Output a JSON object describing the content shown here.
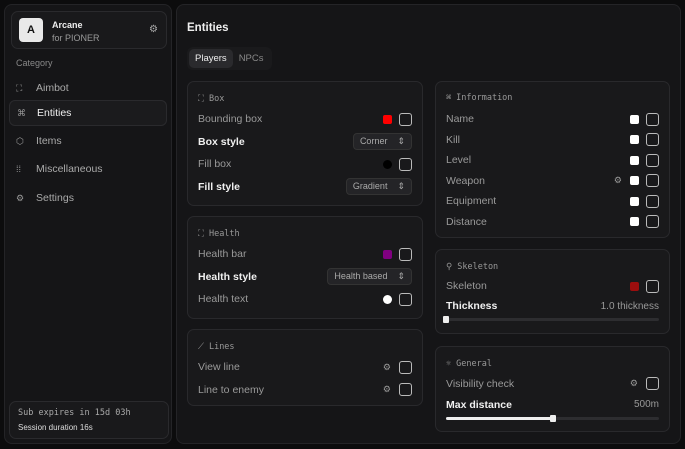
{
  "brand": {
    "logo": "A",
    "name": "Arcane",
    "subtitle": "for PIONER",
    "icon": "gear-icon"
  },
  "sidebar": {
    "category": "Category",
    "items": [
      {
        "label": "Aimbot",
        "icon": "crosshair-icon"
      },
      {
        "label": "Entities",
        "icon": "entities-icon",
        "active": true
      },
      {
        "label": "Items",
        "icon": "cube-icon"
      },
      {
        "label": "Miscellaneous",
        "icon": "misc-icon"
      },
      {
        "label": "Settings",
        "icon": "gear-icon"
      }
    ]
  },
  "footer": {
    "sub": "Sub expires in 15d 03h",
    "session": "Session duration 16s"
  },
  "main": {
    "title": "Entities",
    "tabs": [
      {
        "label": "Players",
        "active": true
      },
      {
        "label": "NPCs"
      }
    ]
  },
  "box": {
    "title": "Box",
    "bounding": "Bounding box",
    "bounding_color": "#ff0000",
    "box_style": "Box style",
    "box_style_value": "Corner",
    "fill_box": "Fill box",
    "fill_color": "#000000",
    "fill_style": "Fill style",
    "fill_style_value": "Gradient"
  },
  "health": {
    "title": "Health",
    "bar": "Health bar",
    "bar_color": "#800080",
    "style": "Health style",
    "style_value": "Health based",
    "text": "Health text",
    "text_color": "#ffffff"
  },
  "lines": {
    "title": "Lines",
    "view": "View line",
    "enemy": "Line to enemy"
  },
  "information": {
    "title": "Information",
    "items": [
      "Name",
      "Kill",
      "Level",
      "Weapon",
      "Equipment",
      "Distance"
    ],
    "color": "#ffffff"
  },
  "skeleton": {
    "title": "Skeleton",
    "label": "Skeleton",
    "color": "#9b0e0e",
    "thickness": "Thickness",
    "thickness_value": "1.0 thickness",
    "thickness_fraction": 0
  },
  "general": {
    "title": "General",
    "visibility": "Visibility check",
    "max_distance": "Max distance",
    "max_distance_value": "500m",
    "max_distance_fraction": 0.5
  }
}
